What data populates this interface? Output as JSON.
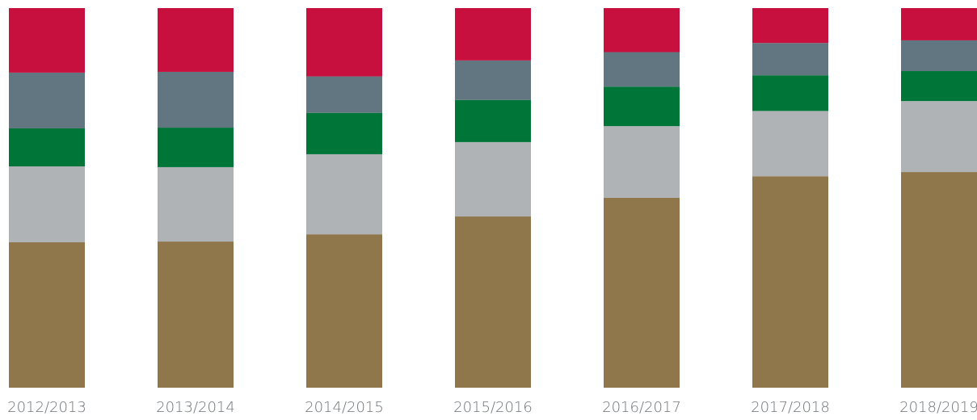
{
  "chart_data": {
    "type": "bar",
    "stacked": true,
    "categories": [
      "2012/2013",
      "2013/2014",
      "2014/2015",
      "2015/2016",
      "2016/2017",
      "2017/2018",
      "2018/2019"
    ],
    "series": [
      {
        "color": "#8f774b",
        "values": [
          38.3,
          38.5,
          40.4,
          45.1,
          50.0,
          55.7,
          56.8
        ]
      },
      {
        "color": "#b0b3b5",
        "values": [
          20.0,
          19.6,
          21.1,
          19.6,
          18.9,
          17.2,
          18.7
        ]
      },
      {
        "color": "#007538",
        "values": [
          10.0,
          10.4,
          10.9,
          11.1,
          10.4,
          9.4,
          7.9
        ]
      },
      {
        "color": "#627682",
        "values": [
          14.7,
          14.7,
          9.6,
          10.4,
          9.1,
          8.5,
          8.1
        ]
      },
      {
        "color": "#c8103e",
        "values": [
          17.0,
          16.8,
          18.0,
          13.8,
          11.6,
          9.2,
          8.5
        ]
      }
    ],
    "ylim": [
      0,
      100
    ],
    "grid": false,
    "legend": "none"
  }
}
